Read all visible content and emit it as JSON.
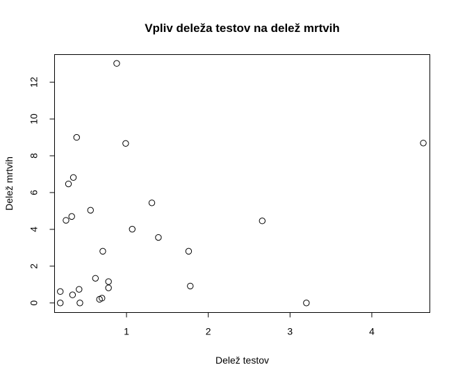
{
  "chart_data": {
    "type": "scatter",
    "title": "Vpliv deleža testov na delež mrtvih",
    "xlabel": "Delež testov",
    "ylabel": "Delež mrtvih",
    "xlim": [
      0.12,
      4.71
    ],
    "ylim": [
      -0.52,
      13.5
    ],
    "xticks": [
      1,
      2,
      3,
      4
    ],
    "yticks": [
      0,
      2,
      4,
      6,
      8,
      10,
      12
    ],
    "grid": false,
    "legend": "none",
    "points": [
      {
        "x": 0.88,
        "y": 13.02
      },
      {
        "x": 0.39,
        "y": 9.0
      },
      {
        "x": 0.99,
        "y": 8.67
      },
      {
        "x": 4.63,
        "y": 8.69
      },
      {
        "x": 0.35,
        "y": 6.82
      },
      {
        "x": 0.29,
        "y": 6.47
      },
      {
        "x": 1.31,
        "y": 5.44
      },
      {
        "x": 0.56,
        "y": 5.04
      },
      {
        "x": 0.33,
        "y": 4.7
      },
      {
        "x": 0.26,
        "y": 4.49
      },
      {
        "x": 2.66,
        "y": 4.46
      },
      {
        "x": 1.07,
        "y": 4.01
      },
      {
        "x": 1.39,
        "y": 3.56
      },
      {
        "x": 0.71,
        "y": 2.81
      },
      {
        "x": 1.76,
        "y": 2.81
      },
      {
        "x": 0.62,
        "y": 1.34
      },
      {
        "x": 0.78,
        "y": 1.16
      },
      {
        "x": 1.78,
        "y": 0.92
      },
      {
        "x": 0.78,
        "y": 0.82
      },
      {
        "x": 0.42,
        "y": 0.74
      },
      {
        "x": 0.19,
        "y": 0.62
      },
      {
        "x": 0.34,
        "y": 0.44
      },
      {
        "x": 0.7,
        "y": 0.26
      },
      {
        "x": 0.67,
        "y": 0.2
      },
      {
        "x": 0.19,
        "y": 0.0
      },
      {
        "x": 0.43,
        "y": 0.0
      },
      {
        "x": 3.2,
        "y": 0.0
      }
    ]
  }
}
